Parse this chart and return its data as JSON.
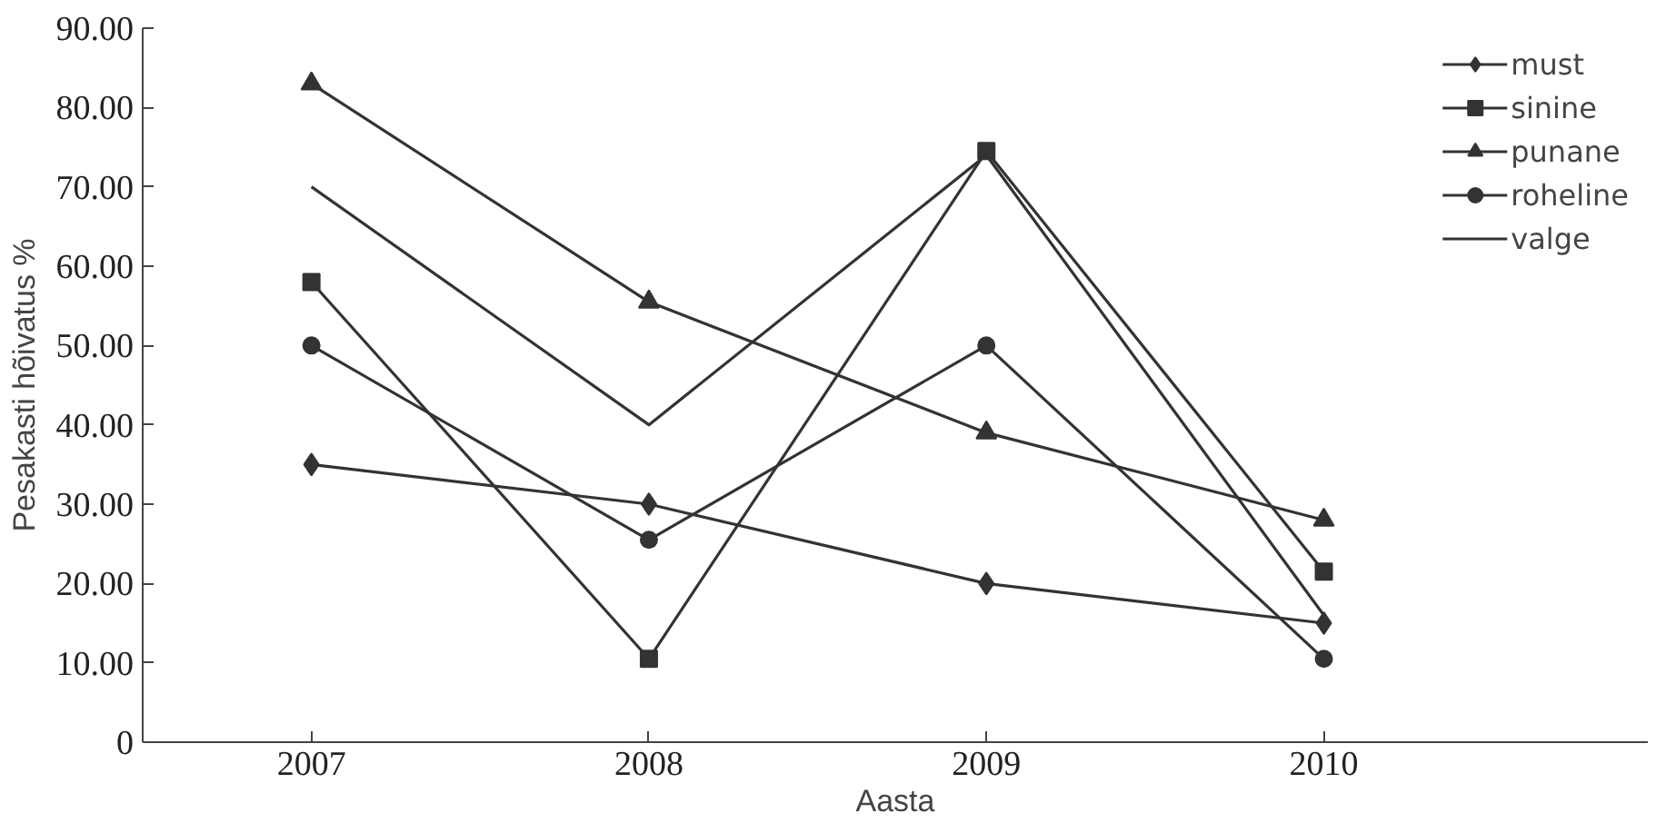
{
  "chart_data": {
    "type": "line",
    "xlabel": "Aasta",
    "ylabel": "Pesakasti hõivatus %",
    "categories": [
      "2007",
      "2008",
      "2009",
      "2010"
    ],
    "ylim": [
      0,
      90
    ],
    "yticks": [
      {
        "value": 0,
        "label": "0"
      },
      {
        "value": 10,
        "label": "10.00"
      },
      {
        "value": 20,
        "label": "20.00"
      },
      {
        "value": 30,
        "label": "30.00"
      },
      {
        "value": 40,
        "label": "40.00"
      },
      {
        "value": 50,
        "label": "50.00"
      },
      {
        "value": 60,
        "label": "60.00"
      },
      {
        "value": 70,
        "label": "70.00"
      },
      {
        "value": 80,
        "label": "80.00"
      },
      {
        "value": 90,
        "label": "90.00"
      }
    ],
    "series": [
      {
        "name": "must",
        "color": "#333333",
        "marker": "diamond",
        "values": [
          35,
          30,
          20,
          15
        ]
      },
      {
        "name": "sinine",
        "color": "#333333",
        "marker": "square",
        "values": [
          58,
          10.5,
          74.5,
          21.5
        ]
      },
      {
        "name": "punane",
        "color": "#333333",
        "marker": "triangle",
        "values": [
          83,
          55.5,
          39,
          28
        ]
      },
      {
        "name": "roheline",
        "color": "#333333",
        "marker": "circle",
        "values": [
          50,
          25.5,
          50,
          10.5
        ]
      },
      {
        "name": "valge",
        "color": "#333333",
        "marker": "none",
        "values": [
          70,
          40,
          74,
          16
        ]
      }
    ],
    "grid": false,
    "legend": "top right",
    "line_style": "solid"
  }
}
